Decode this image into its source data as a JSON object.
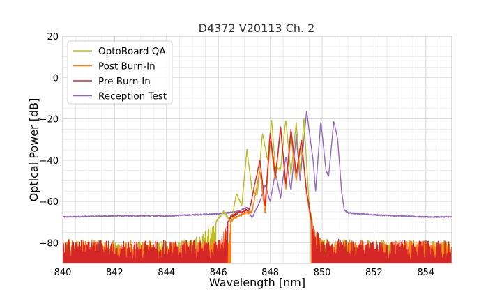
{
  "chart_data": {
    "type": "line",
    "title": "D4372 V20113 Ch. 2",
    "xlabel": "Wavelength [nm]",
    "ylabel": "Optical Power [dB]",
    "xlim": [
      840,
      855
    ],
    "ylim": [
      -90,
      20
    ],
    "x_ticks": [
      840,
      842,
      844,
      846,
      848,
      850,
      852,
      854
    ],
    "y_ticks": [
      20,
      0,
      -20,
      -40,
      -60,
      -80
    ],
    "x_tick_labels": [
      "840",
      "842",
      "844",
      "846",
      "848",
      "850",
      "852",
      "854"
    ],
    "y_tick_labels": [
      "20",
      "0",
      "−20",
      "−40",
      "−60",
      "−80"
    ],
    "grid": true,
    "legend_position": "top-left",
    "noise_floor": -90,
    "series": [
      {
        "name": "OptoBoard QA",
        "color": "#bcbd22",
        "points": [
          [
            840,
            -78
          ],
          [
            841,
            -79
          ],
          [
            842,
            -79
          ],
          [
            843,
            -79
          ],
          [
            844,
            -79
          ],
          [
            845,
            -78
          ],
          [
            845.8,
            -72
          ],
          [
            846.2,
            -65
          ],
          [
            846.5,
            -70
          ],
          [
            846.7,
            -56
          ],
          [
            846.9,
            -62
          ],
          [
            847.1,
            -35
          ],
          [
            847.3,
            -55
          ],
          [
            847.5,
            -57
          ],
          [
            847.7,
            -27
          ],
          [
            847.9,
            -40
          ],
          [
            848.05,
            -20
          ],
          [
            848.2,
            -44
          ],
          [
            848.4,
            -44
          ],
          [
            848.6,
            -20
          ],
          [
            848.8,
            -47
          ],
          [
            849.0,
            -22
          ],
          [
            849.15,
            -46
          ],
          [
            849.3,
            -20
          ],
          [
            849.5,
            -62
          ],
          [
            849.7,
            -74
          ],
          [
            850,
            -78
          ],
          [
            852,
            -79
          ],
          [
            854,
            -79
          ],
          [
            855,
            -79
          ]
        ],
        "spiky": true
      },
      {
        "name": "Post Burn-In",
        "color": "#ff7f0e",
        "points": [
          [
            840,
            -78
          ],
          [
            842,
            -79
          ],
          [
            844,
            -79
          ],
          [
            846,
            -78
          ],
          [
            846.6,
            -68
          ],
          [
            847.0,
            -66
          ],
          [
            847.3,
            -65
          ],
          [
            847.6,
            -45
          ],
          [
            847.8,
            -66
          ],
          [
            848.0,
            -30
          ],
          [
            848.2,
            -50
          ],
          [
            848.4,
            -24
          ],
          [
            848.6,
            -54
          ],
          [
            848.8,
            -28
          ],
          [
            849.0,
            -50
          ],
          [
            849.2,
            -30
          ],
          [
            849.4,
            -56
          ],
          [
            849.6,
            -72
          ],
          [
            850,
            -78
          ],
          [
            852,
            -79
          ],
          [
            855,
            -79
          ]
        ],
        "spiky": true
      },
      {
        "name": "Pre Burn-In",
        "color": "#d62728",
        "points": [
          [
            840,
            -78
          ],
          [
            842,
            -79
          ],
          [
            844,
            -79
          ],
          [
            846,
            -78
          ],
          [
            846.5,
            -67
          ],
          [
            846.9,
            -65
          ],
          [
            847.2,
            -64
          ],
          [
            847.6,
            -40
          ],
          [
            847.8,
            -62
          ],
          [
            848.0,
            -27
          ],
          [
            848.2,
            -48
          ],
          [
            848.4,
            -24
          ],
          [
            848.6,
            -52
          ],
          [
            848.8,
            -25
          ],
          [
            849.0,
            -47
          ],
          [
            849.2,
            -30
          ],
          [
            849.4,
            -55
          ],
          [
            849.6,
            -70
          ],
          [
            850,
            -78
          ],
          [
            852,
            -79
          ],
          [
            855,
            -79
          ]
        ],
        "spiky": true
      },
      {
        "name": "Reception Test",
        "color": "#9467bd",
        "points": [
          [
            840,
            -67.5
          ],
          [
            842,
            -67
          ],
          [
            844,
            -67
          ],
          [
            845,
            -66.5
          ],
          [
            846,
            -66
          ],
          [
            846.7,
            -65
          ],
          [
            847.1,
            -63
          ],
          [
            847.3,
            -68
          ],
          [
            847.6,
            -60
          ],
          [
            847.8,
            -52
          ],
          [
            848.0,
            -60
          ],
          [
            848.2,
            -46
          ],
          [
            848.4,
            -58
          ],
          [
            848.6,
            -38
          ],
          [
            848.8,
            -55
          ],
          [
            849.0,
            -28
          ],
          [
            849.15,
            -50
          ],
          [
            849.4,
            -16
          ],
          [
            849.65,
            -40
          ],
          [
            849.75,
            -55
          ],
          [
            849.95,
            -21
          ],
          [
            850.15,
            -45
          ],
          [
            850.25,
            -48
          ],
          [
            850.45,
            -21
          ],
          [
            850.6,
            -30
          ],
          [
            850.75,
            -55
          ],
          [
            850.85,
            -64
          ],
          [
            851,
            -65.5
          ],
          [
            852,
            -66.5
          ],
          [
            854,
            -67.5
          ],
          [
            855,
            -67.5
          ]
        ],
        "spiky": false
      }
    ]
  }
}
